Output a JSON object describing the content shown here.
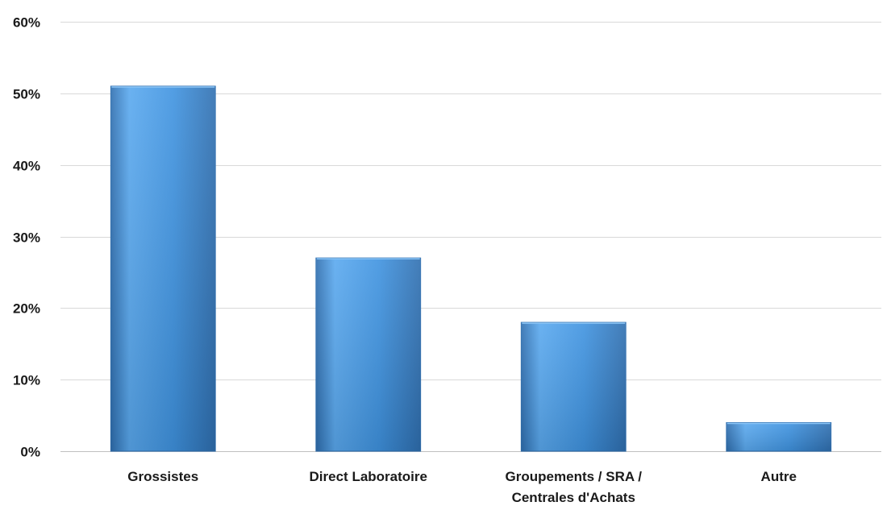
{
  "chart_data": {
    "type": "bar",
    "categories": [
      [
        "Grossistes"
      ],
      [
        "Direct Laboratoire"
      ],
      [
        "Groupements / SRA /",
        "Centrales d'Achats"
      ],
      [
        "Autre"
      ]
    ],
    "values": [
      51,
      27,
      18,
      4
    ],
    "ylim": [
      0,
      60
    ],
    "yticks": [
      0,
      10,
      20,
      30,
      40,
      50,
      60
    ],
    "ytick_format": "%",
    "title": "",
    "xlabel": "",
    "ylabel": "",
    "grid": true,
    "legend": "none",
    "colors": {
      "bar_light": "#5aa9ef",
      "bar_mid": "#3f93e0",
      "bar_dark": "#2f6fb0",
      "gridline": "#d9d9d9",
      "text": "#1a1a1a"
    }
  }
}
